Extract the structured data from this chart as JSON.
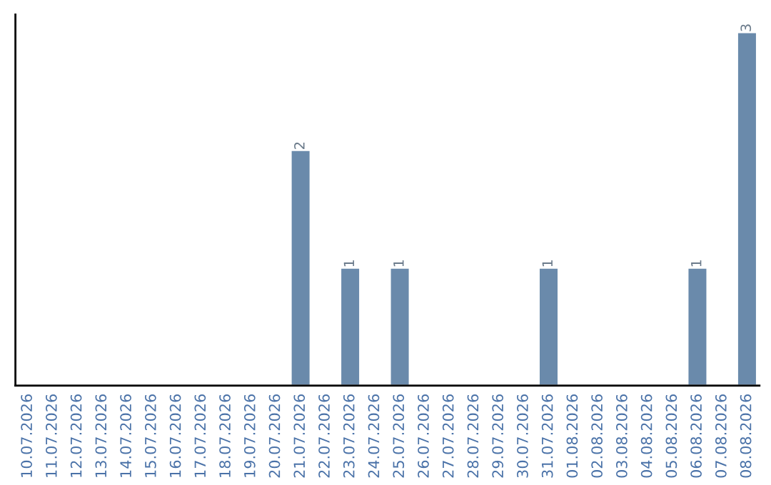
{
  "chart_data": {
    "type": "bar",
    "categories": [
      "10.07.2026",
      "11.07.2026",
      "12.07.2026",
      "13.07.2026",
      "14.07.2026",
      "15.07.2026",
      "16.07.2026",
      "17.07.2026",
      "18.07.2026",
      "19.07.2026",
      "20.07.2026",
      "21.07.2026",
      "22.07.2026",
      "23.07.2026",
      "24.07.2026",
      "25.07.2026",
      "26.07.2026",
      "27.07.2026",
      "28.07.2026",
      "29.07.2026",
      "30.07.2026",
      "31.07.2026",
      "01.08.2026",
      "02.08.2026",
      "03.08.2026",
      "04.08.2026",
      "05.08.2026",
      "06.08.2026",
      "07.08.2026",
      "08.08.2026"
    ],
    "values": [
      null,
      null,
      null,
      null,
      null,
      null,
      null,
      null,
      null,
      null,
      null,
      2,
      null,
      1,
      null,
      1,
      null,
      null,
      null,
      null,
      null,
      1,
      null,
      null,
      null,
      null,
      null,
      1,
      null,
      3
    ],
    "value_labels": [
      null,
      null,
      null,
      null,
      null,
      null,
      null,
      null,
      null,
      null,
      null,
      "2",
      null,
      "1",
      null,
      "1",
      null,
      null,
      null,
      null,
      null,
      "1",
      null,
      null,
      null,
      null,
      null,
      "1",
      null,
      "3"
    ],
    "color": "#6a8aab",
    "tick_labels": "x",
    "grid": false,
    "legend": false
  }
}
